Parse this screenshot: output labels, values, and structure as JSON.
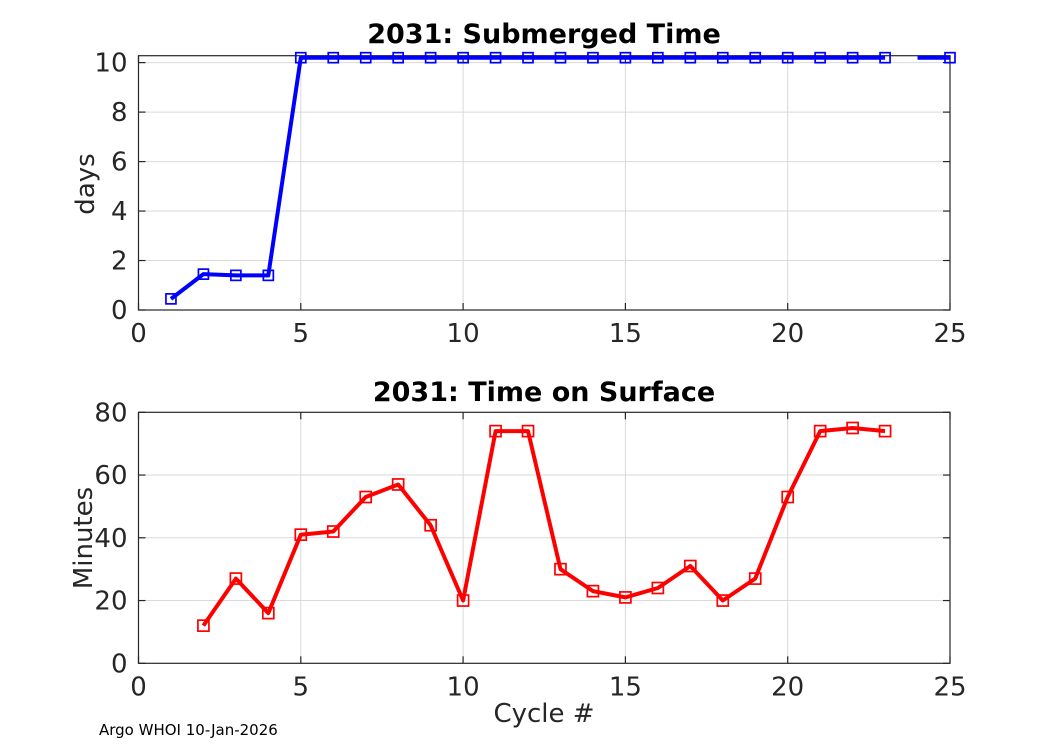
{
  "page": {
    "background": "#ffffff",
    "footnote": "Argo WHOI 10-Jan-2026"
  },
  "styles": {
    "grid_color": "#d9d9d9",
    "axis_color": "#262626",
    "tick_label_color": "#262626",
    "title_color": "#000000",
    "submerged_line_color": "#0000ff",
    "surface_line_color": "#ff0000"
  },
  "chart_data": [
    {
      "type": "line",
      "title": "2031: Submerged Time",
      "xlabel": "",
      "ylabel": "days",
      "line_color": "#0000ff",
      "marker": "open-square",
      "marker_size": 10,
      "grid": true,
      "legend_position": "none",
      "xlim": [
        0,
        25
      ],
      "ylim": [
        0,
        10.28
      ],
      "xticks": [
        0,
        5,
        10,
        15,
        20,
        25
      ],
      "yticks": [
        0,
        2,
        4,
        6,
        8,
        10
      ],
      "segments": [
        {
          "x": [
            1,
            2,
            3,
            4,
            5,
            6,
            7,
            8,
            9,
            10,
            11,
            12,
            13,
            14,
            15,
            16,
            17,
            18,
            19,
            20,
            21,
            22,
            23
          ],
          "y": [
            0.45,
            1.45,
            1.4,
            1.4,
            10.2,
            10.2,
            10.2,
            10.2,
            10.2,
            10.2,
            10.2,
            10.2,
            10.2,
            10.2,
            10.2,
            10.2,
            10.2,
            10.2,
            10.2,
            10.2,
            10.2,
            10.2,
            10.2
          ]
        },
        {
          "x": [
            24,
            25
          ],
          "y": [
            10.2,
            10.2
          ]
        }
      ],
      "markers": {
        "x": [
          1,
          2,
          3,
          4,
          5,
          6,
          7,
          8,
          9,
          10,
          11,
          12,
          13,
          14,
          15,
          16,
          17,
          18,
          19,
          20,
          21,
          22,
          23,
          25
        ],
        "y": [
          0.45,
          1.45,
          1.4,
          1.4,
          10.2,
          10.2,
          10.2,
          10.2,
          10.2,
          10.2,
          10.2,
          10.2,
          10.2,
          10.2,
          10.2,
          10.2,
          10.2,
          10.2,
          10.2,
          10.2,
          10.2,
          10.2,
          10.2,
          10.2
        ]
      }
    },
    {
      "type": "line",
      "title": "2031: Time on Surface",
      "xlabel": "Cycle #",
      "ylabel": "Minutes",
      "line_color": "#ff0000",
      "marker": "open-square",
      "marker_size": 11,
      "grid": true,
      "legend_position": "none",
      "xlim": [
        0,
        25
      ],
      "ylim": [
        0,
        80
      ],
      "xticks": [
        0,
        5,
        10,
        15,
        20,
        25
      ],
      "yticks": [
        0,
        20,
        40,
        60,
        80
      ],
      "segments": [
        {
          "x": [
            2,
            3,
            4,
            5,
            6,
            7,
            8,
            9,
            10,
            11,
            12,
            13,
            14,
            15,
            16,
            17,
            18,
            19,
            20,
            21,
            22,
            23
          ],
          "y": [
            12,
            27,
            16,
            41,
            42,
            53,
            57,
            44,
            20,
            74,
            74,
            30,
            23,
            21,
            24,
            31,
            20,
            27,
            53,
            74,
            75,
            74
          ]
        }
      ],
      "markers": {
        "x": [
          2,
          3,
          4,
          5,
          6,
          7,
          8,
          9,
          10,
          11,
          12,
          13,
          14,
          15,
          16,
          17,
          18,
          19,
          20,
          21,
          22,
          23
        ],
        "y": [
          12,
          27,
          16,
          41,
          42,
          53,
          57,
          44,
          20,
          74,
          74,
          30,
          23,
          21,
          24,
          31,
          20,
          27,
          53,
          74,
          75,
          74
        ]
      }
    }
  ]
}
